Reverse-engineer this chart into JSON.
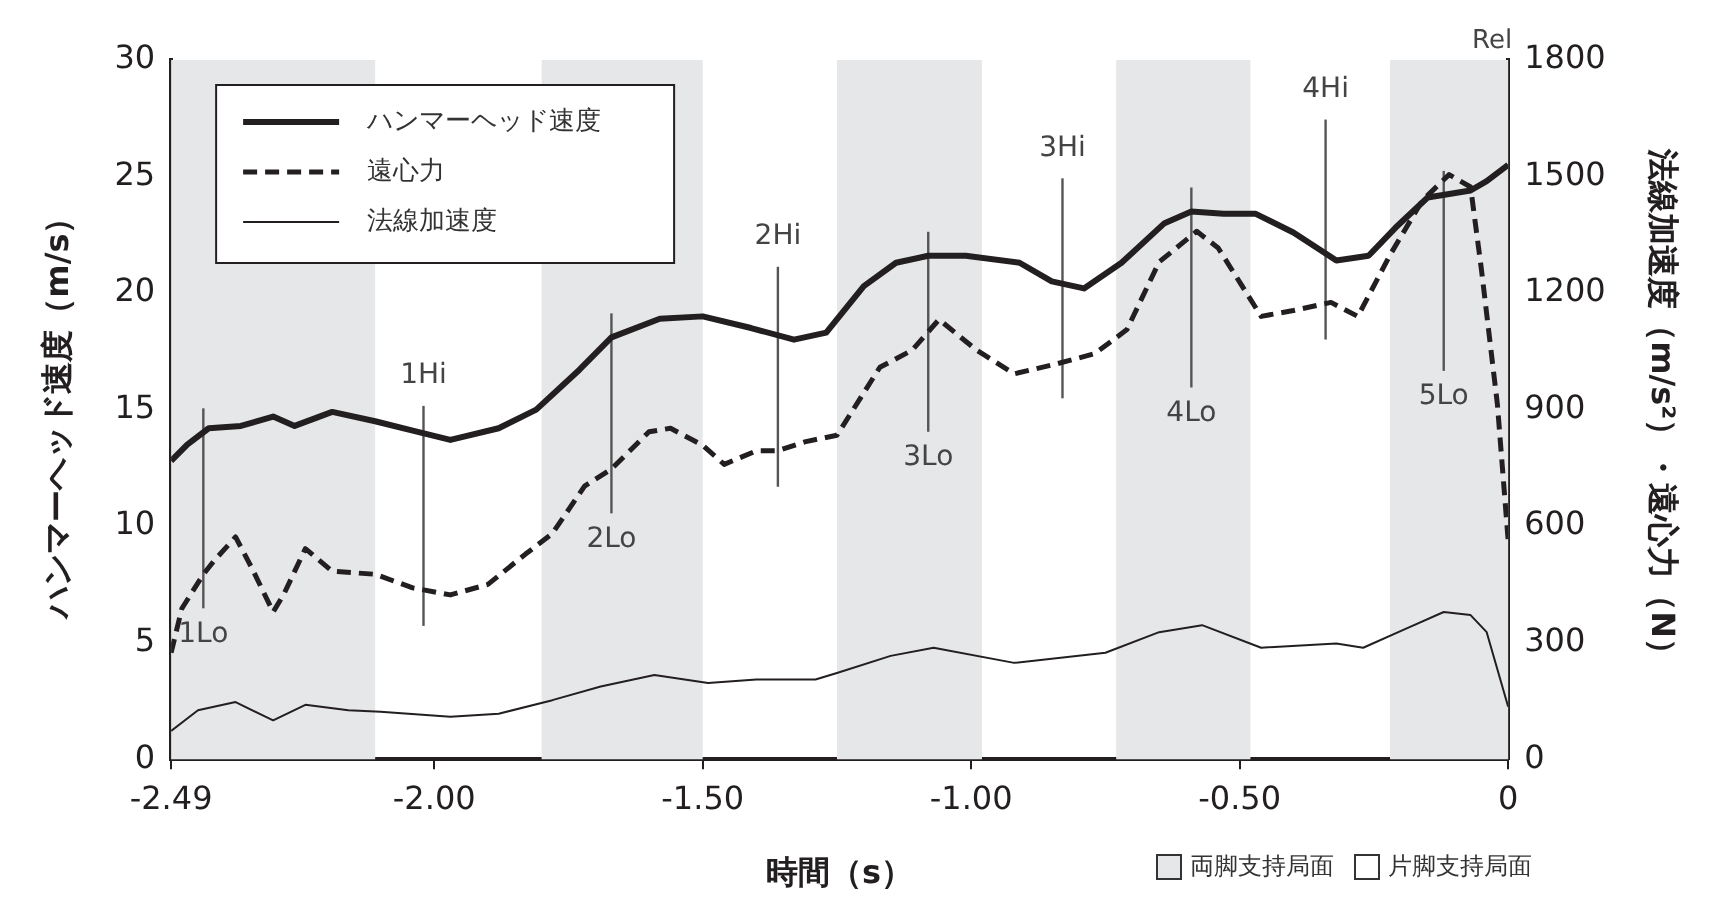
{
  "chart_data": {
    "type": "line",
    "xlabel": "時間（s）",
    "ylabel": "ハンマーヘッド速度（m/s）",
    "y2label": "法線加速度（m/s²）・遠心力（N）",
    "xlim": [
      -2.49,
      0
    ],
    "xticks": [
      -2.49,
      {
        "value": -2,
        "label": "-2.00"
      },
      {
        "value": -1.5,
        "label": "-1.50"
      },
      {
        "value": -1,
        "label": "-1.00"
      },
      {
        "value": -0.5,
        "label": "-0.50"
      },
      0
    ],
    "ylim": [
      0,
      30
    ],
    "yticks": [
      0,
      5,
      10,
      15,
      20,
      25,
      30
    ],
    "y2lim": [
      0,
      1800
    ],
    "y2ticks": [
      0,
      300,
      600,
      900,
      1200,
      1500,
      1800
    ],
    "legend": "top left",
    "marker": "none",
    "grid": false,
    "series": [
      {
        "name": "ハンマーヘッド速度",
        "color": "#231f20",
        "line_style": "solid",
        "x": [
          -2.49,
          -2.46,
          -2.42,
          -2.36,
          -2.3,
          -2.26,
          -2.19,
          -2.11,
          -2.04,
          -1.97,
          -1.88,
          -1.81,
          -1.73,
          -1.67,
          -1.58,
          -1.5,
          -1.41,
          -1.33,
          -1.27,
          -1.2,
          -1.14,
          -1.08,
          -1.01,
          -0.91,
          -0.85,
          -0.79,
          -0.72,
          -0.64,
          -0.59,
          -0.53,
          -0.47,
          -0.4,
          -0.32,
          -0.26,
          -0.21,
          -0.15,
          -0.07,
          -0.04,
          0
        ],
        "values": [
          12.8,
          13.5,
          14.2,
          14.3,
          14.7,
          14.3,
          14.9,
          14.5,
          14.1,
          13.7,
          14.2,
          15,
          16.7,
          18.1,
          18.9,
          19,
          18.5,
          18,
          18.3,
          20.3,
          21.3,
          21.6,
          21.6,
          21.3,
          20.5,
          20.2,
          21.3,
          23,
          23.5,
          23.4,
          23.4,
          22.6,
          21.4,
          21.6,
          22.8,
          24.1,
          24.4,
          24.8,
          25.5
        ]
      },
      {
        "name": "遠心力",
        "color": "#231f20",
        "line_style": "dashed",
        "axis": "y2",
        "x": [
          -2.49,
          -2.47,
          -2.43,
          -2.41,
          -2.37,
          -2.34,
          -2.3,
          -2.28,
          -2.24,
          -2.19,
          -2.11,
          -2.04,
          -1.97,
          -1.9,
          -1.83,
          -1.78,
          -1.72,
          -1.67,
          -1.6,
          -1.56,
          -1.5,
          -1.46,
          -1.4,
          -1.36,
          -1.31,
          -1.25,
          -1.17,
          -1.11,
          -1.06,
          -0.99,
          -0.92,
          -0.84,
          -0.77,
          -0.71,
          -0.65,
          -0.58,
          -0.54,
          -0.5,
          -0.46,
          -0.4,
          -0.33,
          -0.28,
          -0.22,
          -0.16,
          -0.11,
          -0.07,
          -0.05,
          -0.02,
          0
        ],
        "values": [
          274,
          388,
          476,
          511,
          572,
          493,
          379,
          425,
          542,
          484,
          476,
          441,
          423,
          450,
          528,
          581,
          703,
          747,
          843,
          852,
          808,
          759,
          794,
          794,
          817,
          834,
          1009,
          1053,
          1132,
          1053,
          992,
          1018,
          1044,
          1106,
          1280,
          1359,
          1316,
          1228,
          1140,
          1155,
          1176,
          1140,
          1298,
          1438,
          1505,
          1473,
          1263,
          913,
          563
        ]
      },
      {
        "name": "法線加速度",
        "color": "#231f20",
        "line_style": "solid",
        "axis": "y2",
        "x": [
          -2.49,
          -2.44,
          -2.37,
          -2.3,
          -2.24,
          -2.16,
          -2.1,
          -1.97,
          -1.88,
          -1.78,
          -1.69,
          -1.59,
          -1.49,
          -1.4,
          -1.29,
          -1.25,
          -1.15,
          -1.07,
          -0.92,
          -0.75,
          -0.65,
          -0.57,
          -0.46,
          -0.32,
          -0.27,
          -0.19,
          -0.12,
          -0.07,
          -0.04,
          0
        ],
        "values": [
          73,
          126,
          147,
          100,
          140,
          126,
          122,
          109,
          117,
          152,
          187,
          217,
          196,
          205,
          205,
          222,
          266,
          287,
          248,
          274,
          327,
          345,
          287,
          298,
          287,
          336,
          379,
          371,
          327,
          135
        ]
      }
    ],
    "bands": [
      {
        "axis": "x",
        "from": -2.49,
        "to": -2.11,
        "color": "#e6e7e8"
      },
      {
        "axis": "x",
        "from": -1.8,
        "to": -1.5,
        "color": "#e6e7e8"
      },
      {
        "axis": "x",
        "from": -1.25,
        "to": -0.98,
        "color": "#e6e7e8"
      },
      {
        "axis": "x",
        "from": -0.73,
        "to": -0.48,
        "color": "#e6e7e8"
      },
      {
        "axis": "x",
        "from": -0.22,
        "to": 0,
        "color": "#e6e7e8"
      }
    ],
    "ref_lines": [
      {
        "axis": "x",
        "value": -2.43,
        "label": "1Lo"
      },
      {
        "axis": "x",
        "value": -2.02,
        "label": "1Hi"
      },
      {
        "axis": "x",
        "value": -1.67,
        "label": "2Lo"
      },
      {
        "axis": "x",
        "value": -1.36,
        "label": "2Hi"
      },
      {
        "axis": "x",
        "value": -1.08,
        "label": "3Lo"
      },
      {
        "axis": "x",
        "value": -0.83,
        "label": "3Hi"
      },
      {
        "axis": "x",
        "value": -0.59,
        "label": "4Lo"
      },
      {
        "axis": "x",
        "value": -0.34,
        "label": "4Hi"
      },
      {
        "axis": "x",
        "value": -0.12,
        "label": "5Lo"
      }
    ],
    "annotations": [
      "Rel",
      "両脚支持局面",
      "片脚支持局面"
    ]
  }
}
